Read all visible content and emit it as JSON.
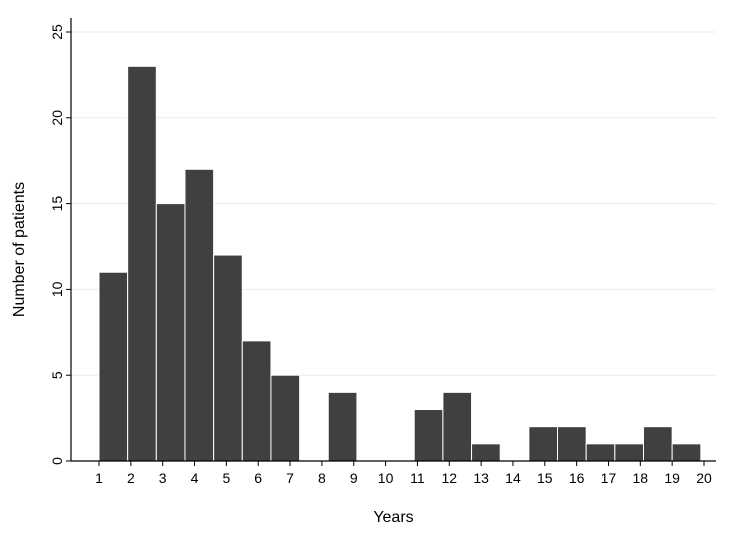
{
  "chart_data": {
    "type": "bar",
    "title": "",
    "xlabel": "Years",
    "ylabel": "Number of patients",
    "x_ticks": [
      "1",
      "2",
      "3",
      "4",
      "5",
      "6",
      "7",
      "8",
      "9",
      "10",
      "11",
      "12",
      "13",
      "14",
      "15",
      "16",
      "17",
      "18",
      "19",
      "20"
    ],
    "y_ticks": [
      "0",
      "5",
      "10",
      "15",
      "20",
      "25"
    ],
    "ylim": [
      0,
      25
    ],
    "xlim": [
      1,
      20
    ],
    "grid": "horizontal",
    "legend": "none",
    "bar_color": "#404040",
    "bins": [
      {
        "start": 1.0,
        "end": 1.9,
        "value": 11
      },
      {
        "start": 1.9,
        "end": 2.8,
        "value": 23
      },
      {
        "start": 2.8,
        "end": 3.7,
        "value": 15
      },
      {
        "start": 3.7,
        "end": 4.6,
        "value": 17
      },
      {
        "start": 4.6,
        "end": 5.5,
        "value": 12
      },
      {
        "start": 5.5,
        "end": 6.4,
        "value": 7
      },
      {
        "start": 6.4,
        "end": 7.3,
        "value": 5
      },
      {
        "start": 7.3,
        "end": 8.2,
        "value": 0
      },
      {
        "start": 8.2,
        "end": 9.1,
        "value": 4
      },
      {
        "start": 9.1,
        "end": 10.0,
        "value": 0
      },
      {
        "start": 10.0,
        "end": 10.9,
        "value": 0
      },
      {
        "start": 10.9,
        "end": 11.8,
        "value": 3
      },
      {
        "start": 11.8,
        "end": 12.7,
        "value": 4
      },
      {
        "start": 12.7,
        "end": 13.6,
        "value": 1
      },
      {
        "start": 13.6,
        "end": 14.5,
        "value": 0
      },
      {
        "start": 14.5,
        "end": 15.4,
        "value": 2
      },
      {
        "start": 15.4,
        "end": 16.3,
        "value": 2
      },
      {
        "start": 16.3,
        "end": 17.2,
        "value": 1
      },
      {
        "start": 17.2,
        "end": 18.1,
        "value": 1
      },
      {
        "start": 18.1,
        "end": 19.0,
        "value": 2
      },
      {
        "start": 19.0,
        "end": 19.9,
        "value": 1
      }
    ]
  }
}
